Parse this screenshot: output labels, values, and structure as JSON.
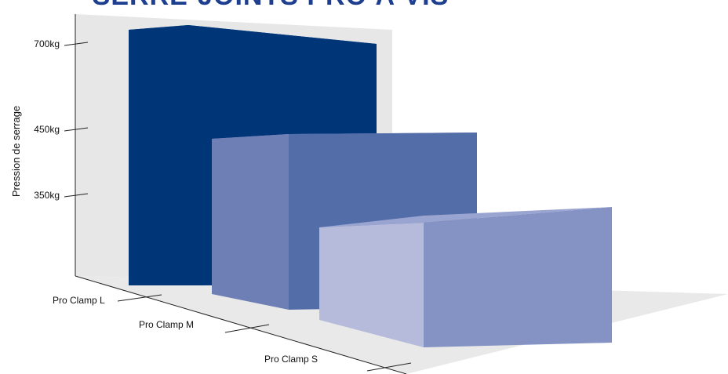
{
  "chart_data": {
    "type": "bar",
    "title": "SERRE-JOINTS PRO À VIS",
    "ylabel": "Pression de serrage",
    "xlabel": "",
    "categories": [
      "Pro Clamp L",
      "Pro Clamp M",
      "Pro Clamp S"
    ],
    "values": [
      700,
      450,
      350
    ],
    "value_unit": "kg",
    "yticks": [
      {
        "value": 350,
        "label": "350kg"
      },
      {
        "value": 450,
        "label": "450kg"
      },
      {
        "value": 700,
        "label": "700kg"
      }
    ],
    "style": "3d-perspective",
    "grid": false,
    "legend": "none",
    "colors": {
      "title": "#1e3f8f",
      "bars": [
        {
          "front": "#003677",
          "side": "#003677",
          "top": "#123f82"
        },
        {
          "front": "#6e7fb5",
          "side": "#536da9",
          "top": "#8393c2"
        },
        {
          "front": "#b6badb",
          "side": "#8593c4",
          "top": "#9aa4d0"
        }
      ],
      "wall": "#e7e7e7",
      "floor": "#e9e9e9"
    }
  }
}
